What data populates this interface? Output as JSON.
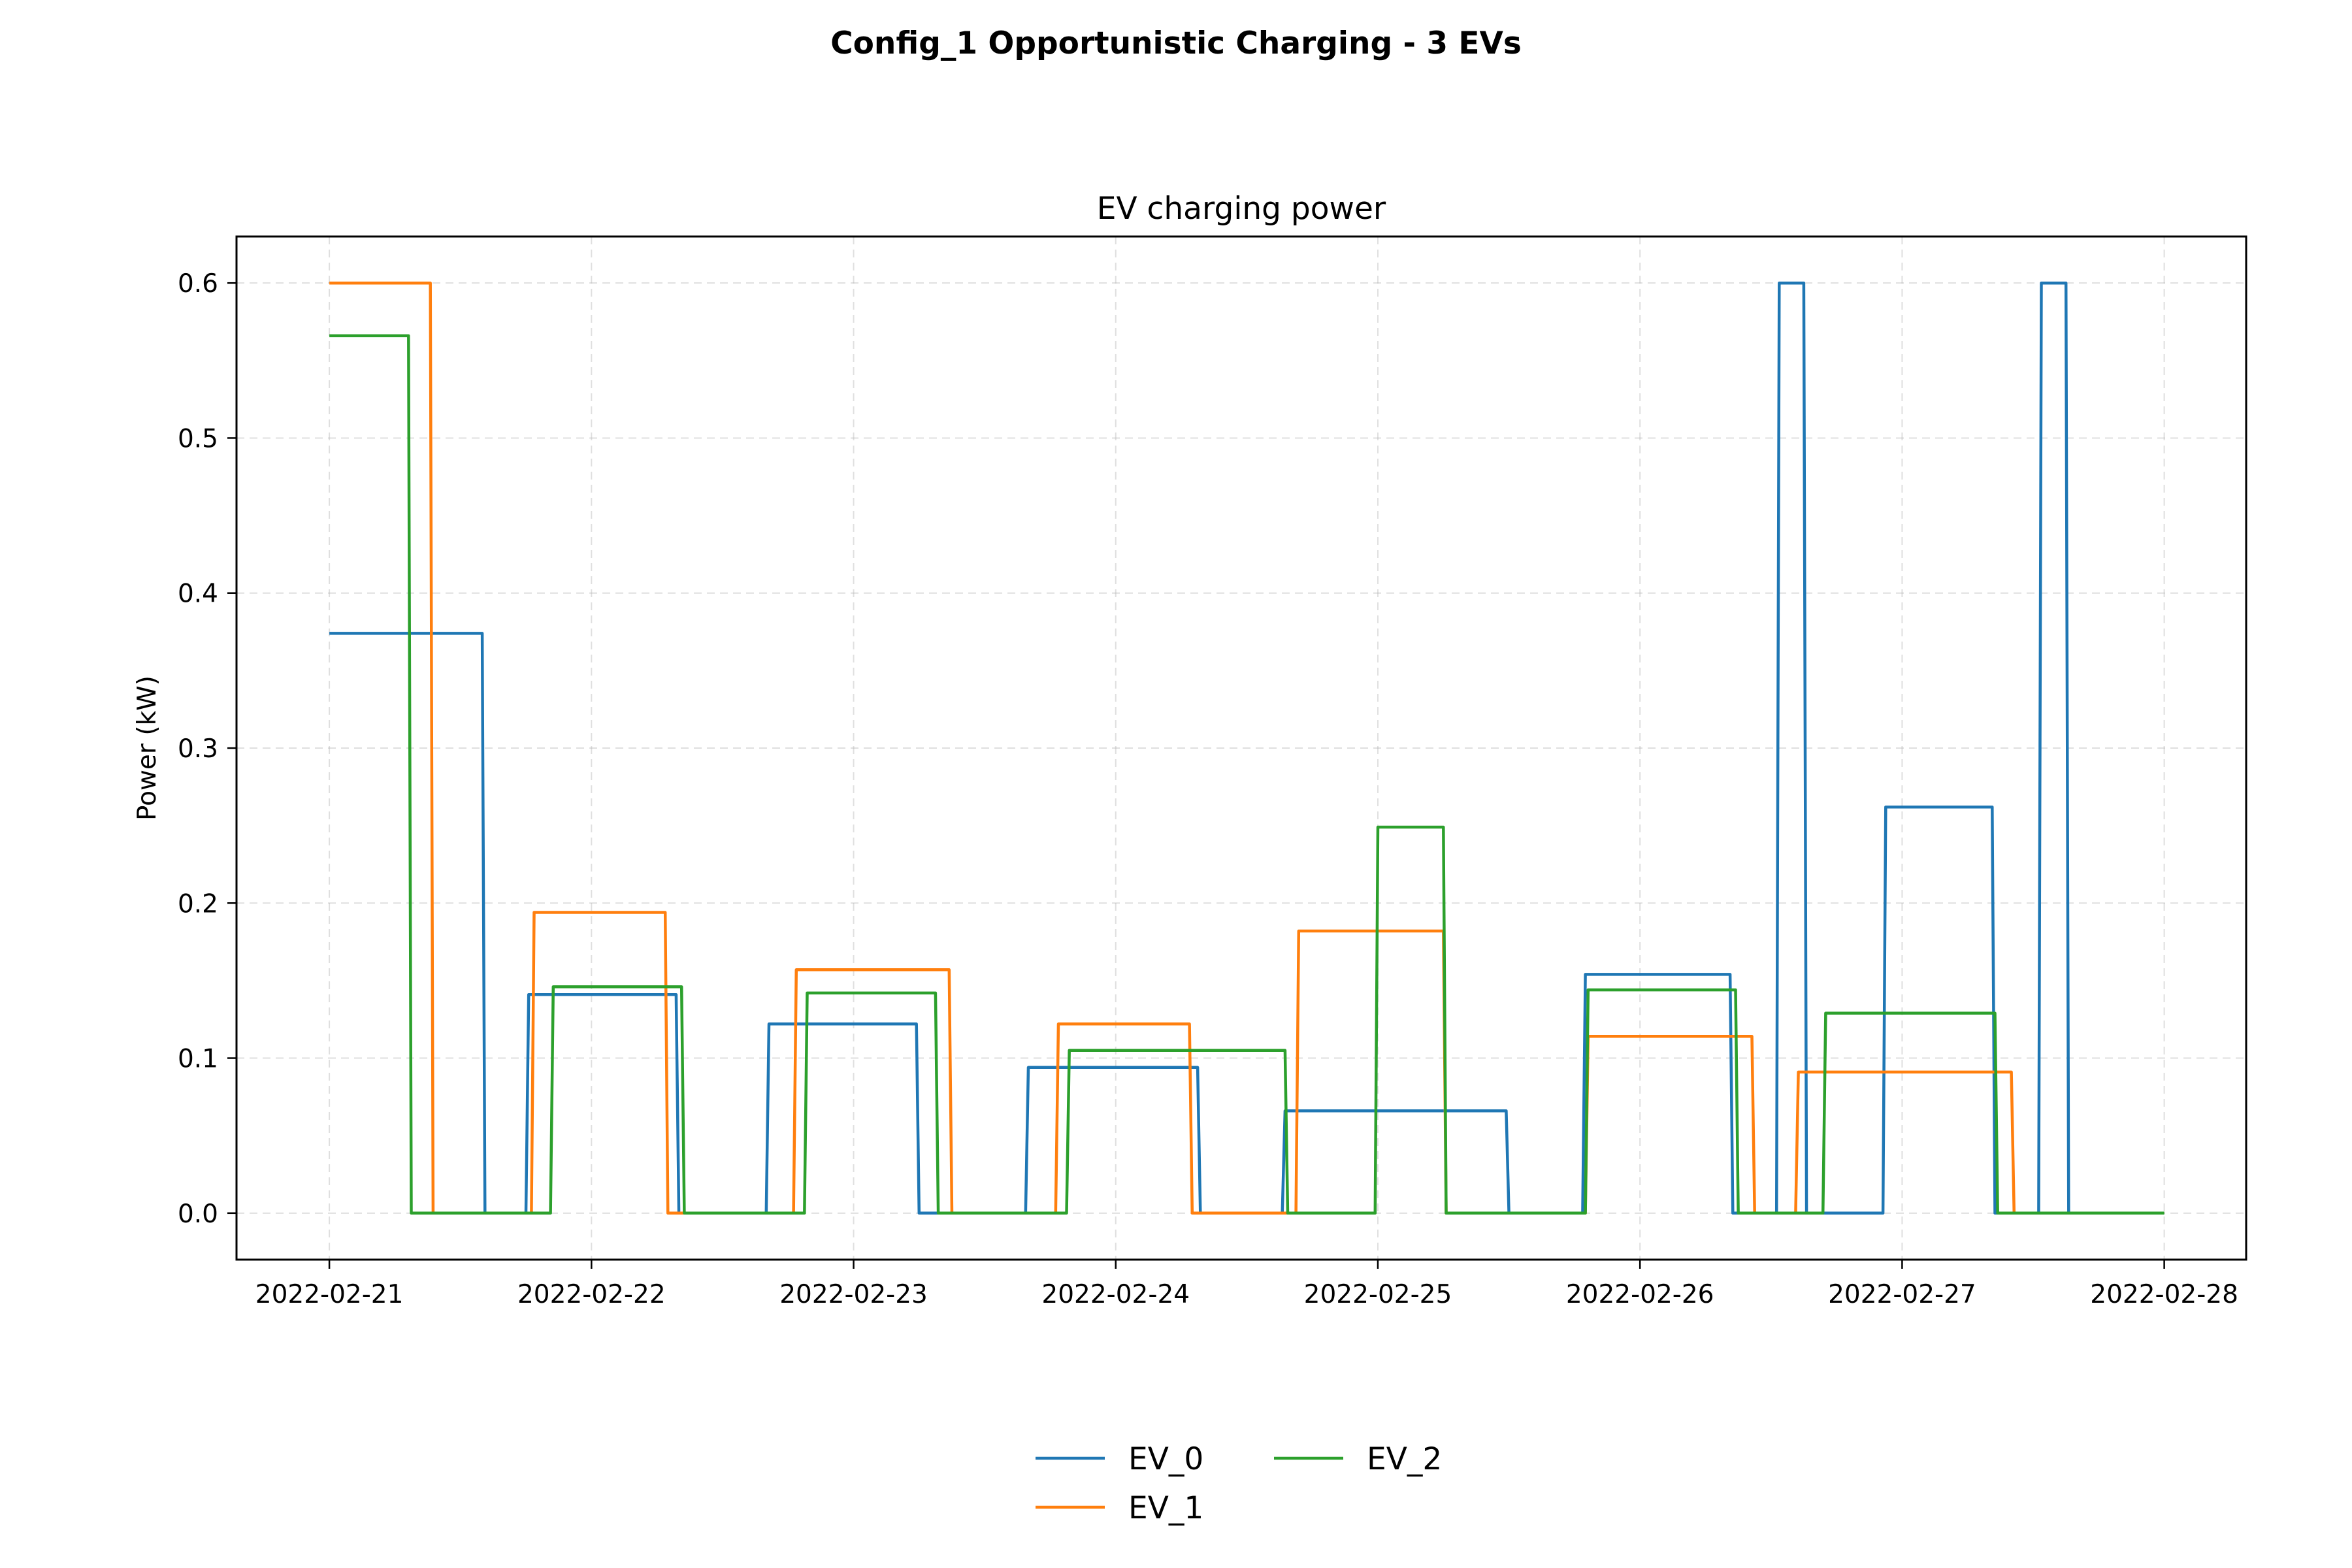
{
  "chart_data": {
    "type": "line",
    "suptitle": "Config_1 Opportunistic Charging - 3 EVs",
    "title": "EV charging power",
    "xlabel": "",
    "ylabel": "Power (kW)",
    "xlim": [
      "2022-02-20T15:30",
      "2022-02-28T07:30"
    ],
    "ylim": [
      -0.03,
      0.63
    ],
    "grid": true,
    "legend_position": "bottom-center",
    "x_ticks": [
      "2022-02-21",
      "2022-02-22",
      "2022-02-23",
      "2022-02-24",
      "2022-02-25",
      "2022-02-26",
      "2022-02-27",
      "2022-02-28"
    ],
    "y_ticks": [
      0.0,
      0.1,
      0.2,
      0.3,
      0.4,
      0.5,
      0.6
    ],
    "y_tick_labels": [
      "0.0",
      "0.1",
      "0.2",
      "0.3",
      "0.4",
      "0.5",
      "0.6"
    ],
    "series": [
      {
        "name": "EV_0",
        "color": "#1f77b4",
        "points": [
          [
            "2022-02-21T00:00",
            0.374
          ],
          [
            "2022-02-21T14:00",
            0.374
          ],
          [
            "2022-02-21T14:15",
            0.0
          ],
          [
            "2022-02-21T18:00",
            0.0
          ],
          [
            "2022-02-21T18:15",
            0.141
          ],
          [
            "2022-02-22T07:45",
            0.141
          ],
          [
            "2022-02-22T08:00",
            0.0
          ],
          [
            "2022-02-22T16:00",
            0.0
          ],
          [
            "2022-02-22T16:15",
            0.122
          ],
          [
            "2022-02-23T05:45",
            0.122
          ],
          [
            "2022-02-23T06:00",
            0.0
          ],
          [
            "2022-02-23T15:45",
            0.0
          ],
          [
            "2022-02-23T16:00",
            0.094
          ],
          [
            "2022-02-24T07:30",
            0.094
          ],
          [
            "2022-02-24T07:45",
            0.0
          ],
          [
            "2022-02-24T15:15",
            0.0
          ],
          [
            "2022-02-24T15:30",
            0.066
          ],
          [
            "2022-02-25T11:45",
            0.066
          ],
          [
            "2022-02-25T12:00",
            0.0
          ],
          [
            "2022-02-25T18:45",
            0.0
          ],
          [
            "2022-02-25T19:00",
            0.154
          ],
          [
            "2022-02-26T08:15",
            0.154
          ],
          [
            "2022-02-26T08:30",
            0.0
          ],
          [
            "2022-02-26T12:30",
            0.0
          ],
          [
            "2022-02-26T12:45",
            0.6
          ],
          [
            "2022-02-26T15:00",
            0.6
          ],
          [
            "2022-02-26T15:15",
            0.0
          ],
          [
            "2022-02-26T22:15",
            0.0
          ],
          [
            "2022-02-26T22:30",
            0.262
          ],
          [
            "2022-02-27T08:15",
            0.262
          ],
          [
            "2022-02-27T08:30",
            0.0
          ],
          [
            "2022-02-27T12:30",
            0.0
          ],
          [
            "2022-02-27T12:45",
            0.6
          ],
          [
            "2022-02-27T15:00",
            0.6
          ],
          [
            "2022-02-27T15:15",
            0.0
          ],
          [
            "2022-02-28T00:00",
            0.0
          ]
        ]
      },
      {
        "name": "EV_1",
        "color": "#ff7f0e",
        "points": [
          [
            "2022-02-21T00:00",
            0.6
          ],
          [
            "2022-02-21T09:15",
            0.6
          ],
          [
            "2022-02-21T09:30",
            0.0
          ],
          [
            "2022-02-21T18:30",
            0.0
          ],
          [
            "2022-02-21T18:45",
            0.194
          ],
          [
            "2022-02-22T06:45",
            0.194
          ],
          [
            "2022-02-22T07:00",
            0.0
          ],
          [
            "2022-02-22T18:30",
            0.0
          ],
          [
            "2022-02-22T18:45",
            0.157
          ],
          [
            "2022-02-23T08:45",
            0.157
          ],
          [
            "2022-02-23T09:00",
            0.0
          ],
          [
            "2022-02-23T18:30",
            0.0
          ],
          [
            "2022-02-23T18:45",
            0.122
          ],
          [
            "2022-02-24T06:45",
            0.122
          ],
          [
            "2022-02-24T07:00",
            0.0
          ],
          [
            "2022-02-24T16:30",
            0.0
          ],
          [
            "2022-02-24T16:45",
            0.182
          ],
          [
            "2022-02-25T06:00",
            0.182
          ],
          [
            "2022-02-25T06:15",
            0.0
          ],
          [
            "2022-02-25T19:00",
            0.0
          ],
          [
            "2022-02-25T19:15",
            0.114
          ],
          [
            "2022-02-26T10:15",
            0.114
          ],
          [
            "2022-02-26T10:30",
            0.0
          ],
          [
            "2022-02-26T14:15",
            0.0
          ],
          [
            "2022-02-26T14:30",
            0.091
          ],
          [
            "2022-02-27T10:00",
            0.091
          ],
          [
            "2022-02-27T10:15",
            0.0
          ],
          [
            "2022-02-28T00:00",
            0.0
          ]
        ]
      },
      {
        "name": "EV_2",
        "color": "#2ca02c",
        "points": [
          [
            "2022-02-21T00:00",
            0.566
          ],
          [
            "2022-02-21T07:15",
            0.566
          ],
          [
            "2022-02-21T07:30",
            0.0
          ],
          [
            "2022-02-21T20:15",
            0.0
          ],
          [
            "2022-02-21T20:30",
            0.146
          ],
          [
            "2022-02-22T08:15",
            0.146
          ],
          [
            "2022-02-22T08:30",
            0.0
          ],
          [
            "2022-02-22T19:30",
            0.0
          ],
          [
            "2022-02-22T19:45",
            0.142
          ],
          [
            "2022-02-23T07:30",
            0.142
          ],
          [
            "2022-02-23T07:45",
            0.0
          ],
          [
            "2022-02-23T19:30",
            0.0
          ],
          [
            "2022-02-23T19:45",
            0.105
          ],
          [
            "2022-02-24T15:30",
            0.105
          ],
          [
            "2022-02-24T15:45",
            0.0
          ],
          [
            "2022-02-24T23:45",
            0.0
          ],
          [
            "2022-02-25T00:00",
            0.249
          ],
          [
            "2022-02-25T06:00",
            0.249
          ],
          [
            "2022-02-25T06:15",
            0.0
          ],
          [
            "2022-02-25T19:00",
            0.0
          ],
          [
            "2022-02-25T19:15",
            0.144
          ],
          [
            "2022-02-26T08:45",
            0.144
          ],
          [
            "2022-02-26T09:00",
            0.0
          ],
          [
            "2022-02-26T16:45",
            0.0
          ],
          [
            "2022-02-26T17:00",
            0.129
          ],
          [
            "2022-02-27T08:30",
            0.129
          ],
          [
            "2022-02-27T08:45",
            0.0
          ],
          [
            "2022-02-28T00:00",
            0.0
          ]
        ]
      }
    ]
  }
}
